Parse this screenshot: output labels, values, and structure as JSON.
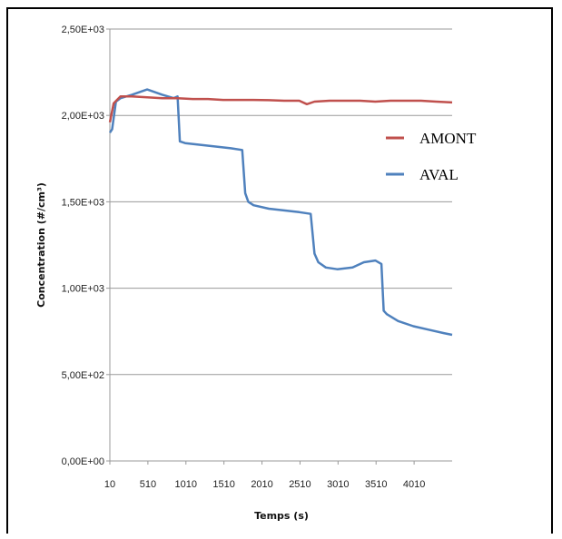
{
  "chart_data": {
    "type": "line",
    "title": "",
    "xlabel": "Temps (s)",
    "ylabel": "Concentration (#/cm³)",
    "x_tick_labels": [
      "10",
      "510",
      "1010",
      "1510",
      "2010",
      "2510",
      "3010",
      "3510",
      "4010"
    ],
    "y_tick_labels": [
      "0,00E+00",
      "5,00E+02",
      "1,00E+03",
      "1,50E+03",
      "2,00E+03",
      "2,50E+03"
    ],
    "xlim": [
      10,
      4510
    ],
    "ylim": [
      0,
      2500
    ],
    "grid": "horizontal",
    "legend_position": "right",
    "series": [
      {
        "name": "AMONT",
        "color": "#c0504d",
        "x": [
          10,
          60,
          150,
          300,
          500,
          700,
          900,
          1100,
          1300,
          1500,
          1700,
          1900,
          2100,
          2300,
          2500,
          2600,
          2700,
          2900,
          3100,
          3300,
          3500,
          3700,
          3900,
          4100,
          4300,
          4510
        ],
        "values": [
          1960,
          2070,
          2110,
          2110,
          2105,
          2100,
          2100,
          2095,
          2095,
          2090,
          2090,
          2090,
          2088,
          2085,
          2085,
          2065,
          2080,
          2085,
          2085,
          2085,
          2080,
          2085,
          2085,
          2085,
          2080,
          2075
        ]
      },
      {
        "name": "AVAL",
        "color": "#4f81bd",
        "x": [
          10,
          40,
          90,
          150,
          300,
          500,
          700,
          850,
          900,
          930,
          1000,
          1200,
          1400,
          1600,
          1750,
          1790,
          1830,
          1900,
          2100,
          2300,
          2500,
          2650,
          2700,
          2750,
          2850,
          3000,
          3200,
          3350,
          3500,
          3580,
          3610,
          3650,
          3800,
          4000,
          4200,
          4400,
          4510
        ],
        "values": [
          1900,
          1920,
          2080,
          2100,
          2120,
          2150,
          2120,
          2100,
          2110,
          1850,
          1840,
          1830,
          1820,
          1810,
          1800,
          1550,
          1500,
          1480,
          1460,
          1450,
          1440,
          1430,
          1200,
          1150,
          1120,
          1110,
          1120,
          1150,
          1160,
          1140,
          870,
          850,
          810,
          780,
          760,
          740,
          730
        ]
      }
    ]
  }
}
